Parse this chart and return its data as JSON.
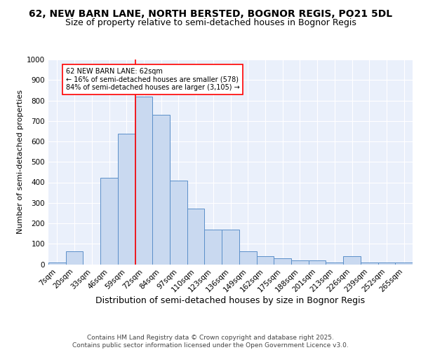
{
  "title1": "62, NEW BARN LANE, NORTH BERSTED, BOGNOR REGIS, PO21 5DL",
  "title2": "Size of property relative to semi-detached houses in Bognor Regis",
  "xlabel": "Distribution of semi-detached houses by size in Bognor Regis",
  "ylabel": "Number of semi-detached properties",
  "bin_labels": [
    "7sqm",
    "20sqm",
    "33sqm",
    "46sqm",
    "59sqm",
    "72sqm",
    "84sqm",
    "97sqm",
    "110sqm",
    "123sqm",
    "136sqm",
    "149sqm",
    "162sqm",
    "175sqm",
    "188sqm",
    "201sqm",
    "213sqm",
    "226sqm",
    "239sqm",
    "252sqm",
    "265sqm"
  ],
  "bar_values": [
    7,
    63,
    0,
    422,
    638,
    820,
    730,
    408,
    273,
    168,
    168,
    63,
    40,
    30,
    18,
    18,
    7,
    40,
    7,
    7,
    7
  ],
  "bar_color": "#c9d9f0",
  "bar_edge_color": "#5b8fc9",
  "vline_x_idx": 5,
  "vline_color": "red",
  "annotation_text": "62 NEW BARN LANE: 62sqm\n← 16% of semi-detached houses are smaller (578)\n84% of semi-detached houses are larger (3,105) →",
  "annotation_box_color": "white",
  "annotation_box_edge": "red",
  "ylim": [
    0,
    1000
  ],
  "yticks": [
    0,
    100,
    200,
    300,
    400,
    500,
    600,
    700,
    800,
    900,
    1000
  ],
  "bg_color": "#eaf0fb",
  "grid_color": "white",
  "footer": "Contains HM Land Registry data © Crown copyright and database right 2025.\nContains public sector information licensed under the Open Government Licence v3.0.",
  "title1_fontsize": 10,
  "title2_fontsize": 9,
  "xlabel_fontsize": 9,
  "ylabel_fontsize": 8,
  "tick_fontsize": 7.5,
  "footer_fontsize": 6.5
}
